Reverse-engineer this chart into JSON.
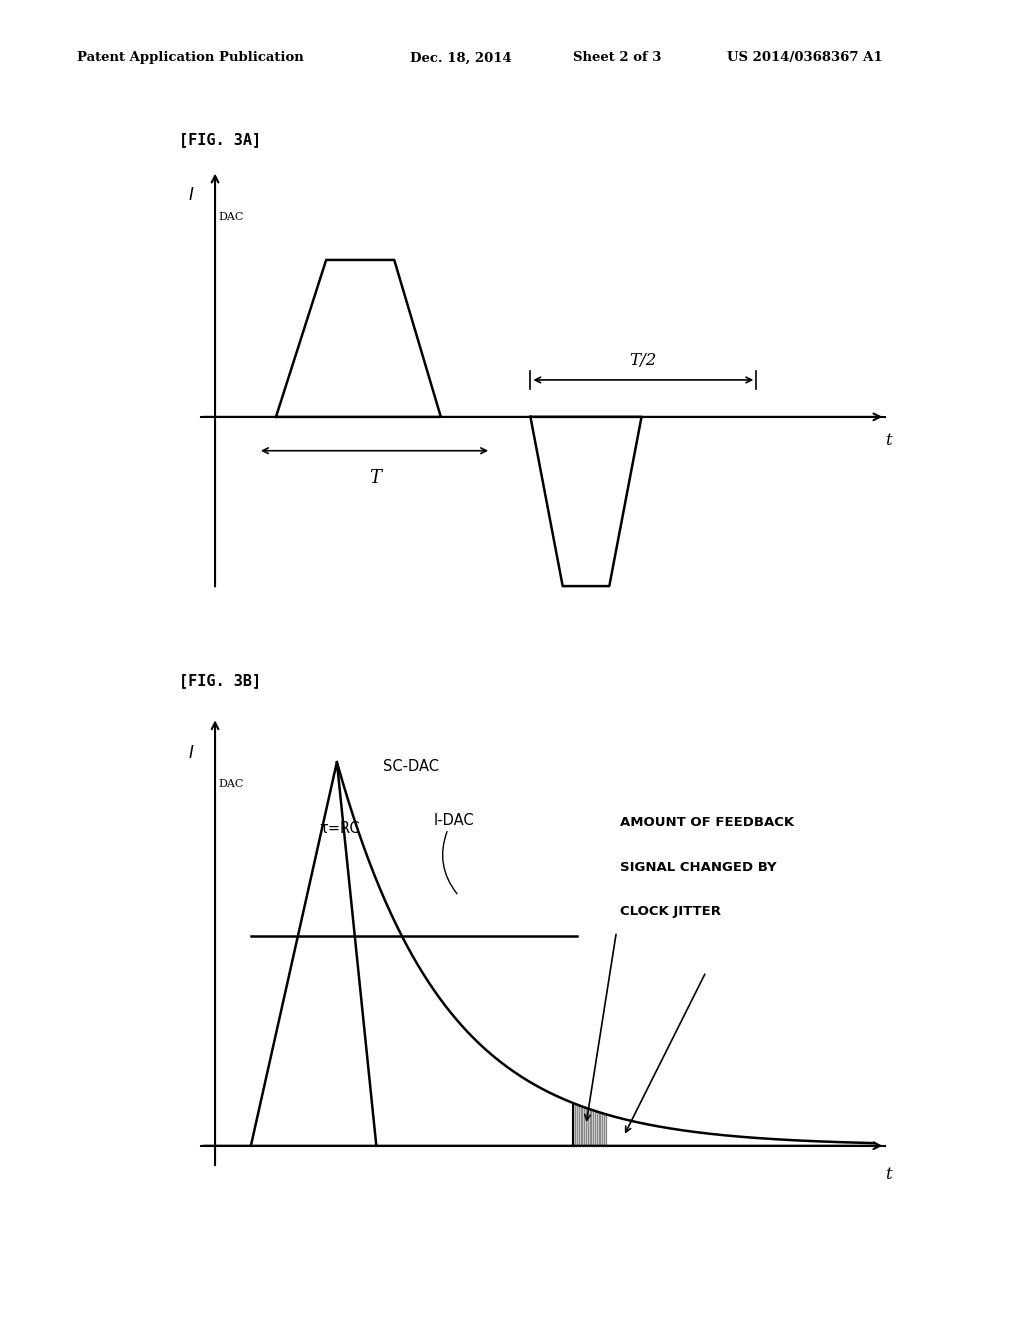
{
  "bg_color": "#ffffff",
  "header_text": "Patent Application Publication",
  "header_date": "Dec. 18, 2014",
  "header_sheet": "Sheet 2 of 3",
  "header_patent": "US 2014/0368367 A1",
  "fig3a_label": "[FIG. 3A]",
  "fig3b_label": "[FIG. 3B]",
  "ylabel_idac_main": "I",
  "ylabel_idac_sub": "DAC",
  "xlabel_t": "t",
  "T_label": "T",
  "T2_label": "T/2",
  "sc_dac_label": "SC-DAC",
  "tau_label": "τ=RC",
  "i_dac_label": "I-DAC",
  "feedback_line1": "AMOUNT OF FEEDBACK",
  "feedback_line2": "SIGNAL CHANGED BY",
  "feedback_line3": "CLOCK JITTER",
  "line_color": "#000000",
  "gray_fill": "#888888"
}
